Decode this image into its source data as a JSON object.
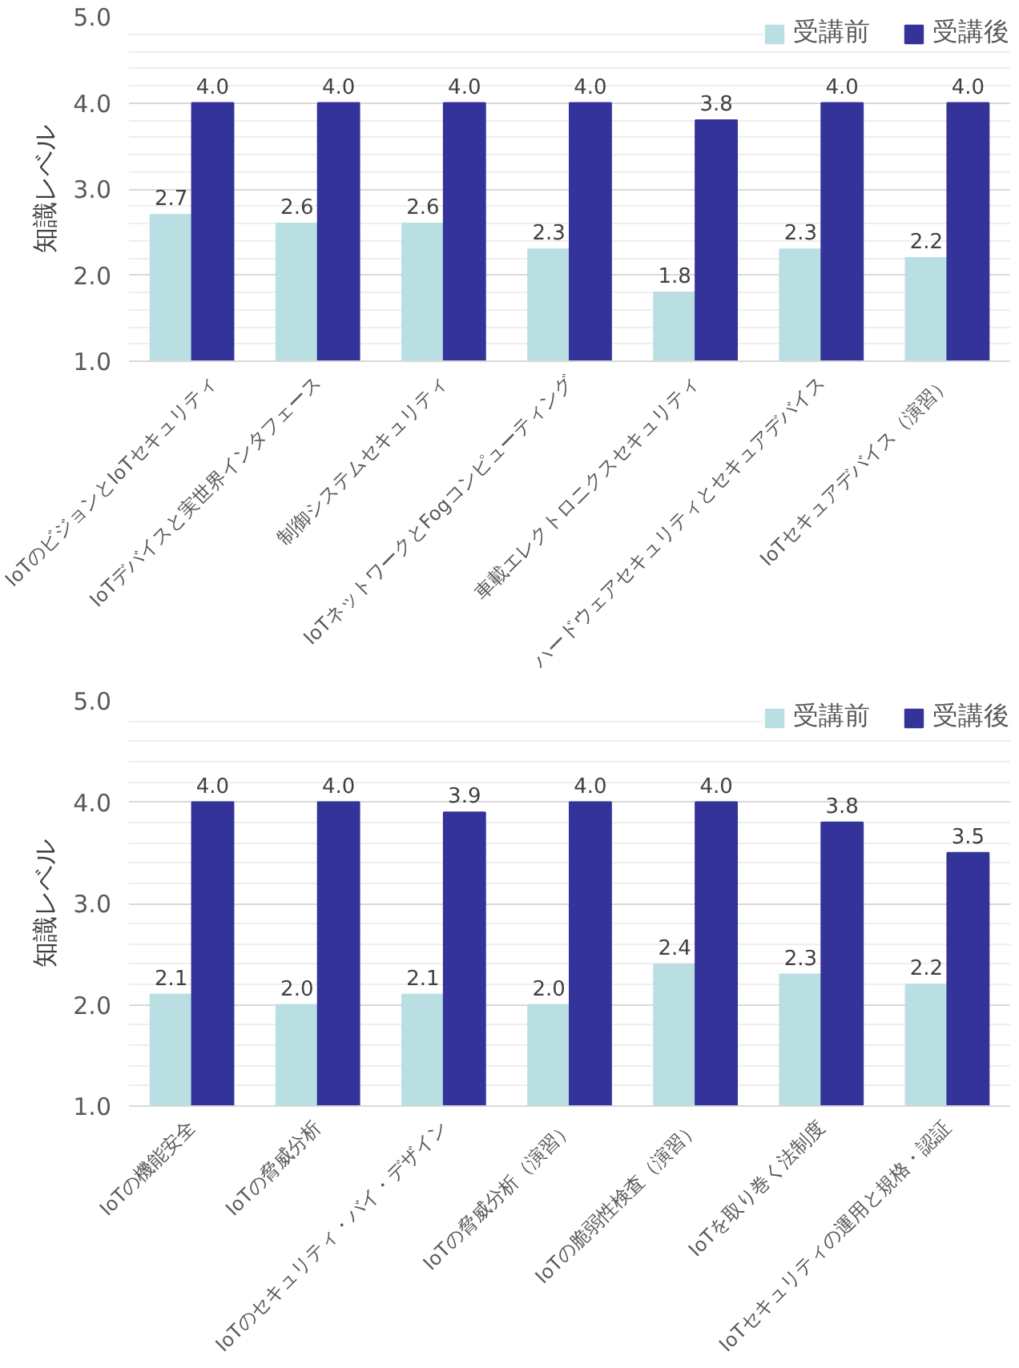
{
  "chart_data": [
    {
      "type": "bar",
      "ylabel": "知識レベル",
      "categories": [
        "IoTのビジョンとIoTセキュリティ",
        "IoTデバイスと実世界インタフェース",
        "制御システムセキュリティ",
        "IoTネットワークとFogコンピューティング",
        "車載エレクトロニクスセキュリティ",
        "ハードウェアセキュリティとセキュアデバイス",
        "IoTセキュアデバイス（演習）"
      ],
      "series": [
        {
          "name": "受講前",
          "color": "#b9dfe3",
          "values": [
            2.7,
            2.6,
            2.6,
            2.3,
            1.8,
            2.3,
            2.2
          ],
          "value_labels": [
            "2.7",
            "2.6",
            "2.6",
            "2.3",
            "1.8",
            "2.3",
            "2.2"
          ]
        },
        {
          "name": "受講後",
          "color": "#333399",
          "values": [
            4.0,
            4.0,
            4.0,
            4.0,
            3.8,
            4.0,
            4.0
          ],
          "value_labels": [
            "4.0",
            "4.0",
            "4.0",
            "4.0",
            "3.8",
            "4.0",
            "4.0"
          ]
        }
      ],
      "ylim": [
        1.0,
        5.0
      ],
      "yticks": [
        "1.0",
        "2.0",
        "3.0",
        "4.0",
        "5.0"
      ],
      "grid": "y",
      "legend": "top right"
    },
    {
      "type": "bar",
      "ylabel": "知識レベル",
      "categories": [
        "IoTの機能安全",
        "IoTの脅威分析",
        "IoTのセキュリティ・バイ・デザイン",
        "IoTの脅威分析（演習）",
        "IoTの脆弱性検査（演習）",
        "IoTを取り巻く法制度",
        "IoTセキュリティの運用と規格・認証"
      ],
      "series": [
        {
          "name": "受講前",
          "color": "#b9dfe3",
          "values": [
            2.1,
            2.0,
            2.1,
            2.0,
            2.4,
            2.3,
            2.2
          ],
          "value_labels": [
            "2.1",
            "2.0",
            "2.1",
            "2.0",
            "2.4",
            "2.3",
            "2.2"
          ]
        },
        {
          "name": "受講後",
          "color": "#333399",
          "values": [
            4.0,
            4.0,
            3.9,
            4.0,
            4.0,
            3.8,
            3.5
          ],
          "value_labels": [
            "4.0",
            "4.0",
            "3.9",
            "4.0",
            "4.0",
            "3.8",
            "3.5"
          ]
        }
      ],
      "ylim": [
        1.0,
        5.0
      ],
      "yticks": [
        "1.0",
        "2.0",
        "3.0",
        "4.0",
        "5.0"
      ],
      "grid": "y",
      "legend": "top right"
    }
  ]
}
